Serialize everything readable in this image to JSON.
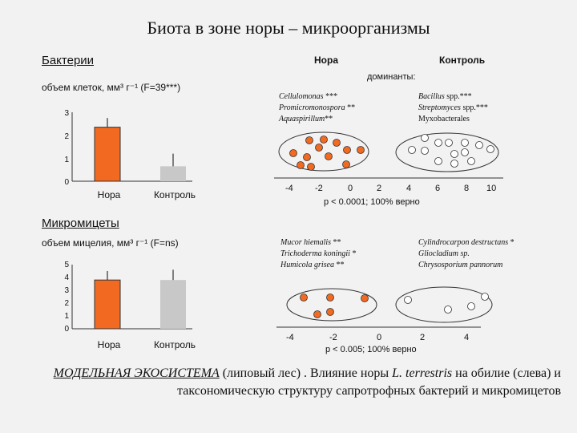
{
  "title": "Биота в зоне норы – микроорганизмы",
  "bacteria": {
    "heading": "Бактерии",
    "subtitle": "объем клеток, мм³ г⁻¹ (F=39***)",
    "y_ticks": [
      "3",
      "2",
      "1",
      "0"
    ],
    "categories": [
      "Нора",
      "Контроль"
    ],
    "values": [
      2.35,
      0.65
    ],
    "errors": [
      0.4,
      0.55
    ],
    "ymax": 3
  },
  "fungi": {
    "heading": "Микромицеты",
    "subtitle": "объем мицелия, мм³ г⁻¹ (F=ns)",
    "y_ticks": [
      "5",
      "4",
      "3",
      "2",
      "1",
      "0"
    ],
    "categories": [
      "Нора",
      "Контроль"
    ],
    "values": [
      3.8,
      3.8
    ],
    "errors": [
      0.7,
      0.8
    ],
    "ymax": 5
  },
  "right_headers": {
    "burrow": "Нора",
    "control": "Контроль",
    "dominants": "доминанты:"
  },
  "bact_dominants": {
    "burrow": [
      {
        "name": "Cellulomonas",
        "stars": " ***"
      },
      {
        "name": "Promicromonospora",
        "stars": " **"
      },
      {
        "name": "Aquaspirillum",
        "stars": "**"
      }
    ],
    "control": [
      {
        "name": "Bacillus",
        "suffix": " spp.***"
      },
      {
        "name": "Streptomyces",
        "suffix": " spp.***"
      },
      {
        "name": "Myxobacterales",
        "suffix": ""
      }
    ]
  },
  "bact_axis": {
    "ticks": [
      "-4",
      "-2",
      "0",
      "2",
      "4",
      "6",
      "8",
      "10"
    ],
    "stat": "p < 0.0001; 100% верно"
  },
  "fungi_dominants": {
    "burrow": [
      {
        "name": "Mucor hiemalis",
        "stars": " **"
      },
      {
        "name": "Trichoderma koningii",
        "stars": " *"
      },
      {
        "name": "Humicola grisea",
        "stars": " **"
      }
    ],
    "control": [
      {
        "name": "Cylindrocarpon destructans",
        "stars": " *"
      },
      {
        "name": "Gliocladium sp.",
        "stars": ""
      },
      {
        "name": "Chrysosporium pannorum",
        "stars": ""
      }
    ]
  },
  "fungi_axis": {
    "ticks": [
      "-4",
      "-2",
      "0",
      "2",
      "4"
    ],
    "stat": "p < 0.005;  100% верно"
  },
  "caption": {
    "part1": "МОДЕЛЬНАЯ ЭКОСИСТЕМА",
    "part2": " (липовый лес) . Влияние норы ",
    "species": "L. terrestris",
    "part3": " на обилие (слева) и таксономическую структуру сапротрофных бактерий и микромицетов"
  },
  "colors": {
    "burrow": "#f26a21",
    "control": "#c8c8c8",
    "outline": "#111111"
  }
}
